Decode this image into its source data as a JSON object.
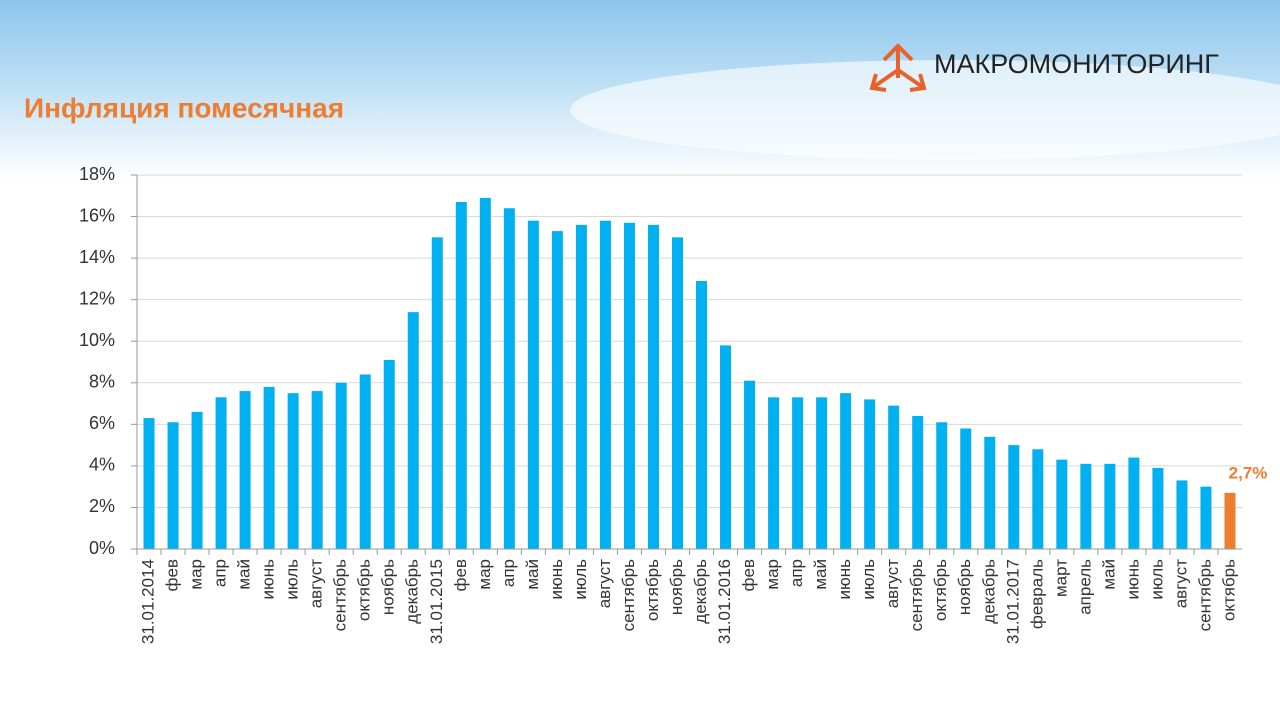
{
  "logo": {
    "text": "МАКРОМОНИТОРИНГ"
  },
  "chart_data": {
    "type": "bar",
    "title": "Инфляция помесячная",
    "categories": [
      "31.01.2014",
      "фев",
      "мар",
      "апр",
      "май",
      "июнь",
      "июль",
      "август",
      "сентябрь",
      "октябрь",
      "ноябрь",
      "декабрь",
      "31.01.2015",
      "фев",
      "мар",
      "апр",
      "май",
      "июнь",
      "июль",
      "август",
      "сентябрь",
      "октябрь",
      "ноябрь",
      "декабрь",
      "31.01.2016",
      "фев",
      "мар",
      "апр",
      "май",
      "июнь",
      "июль",
      "август",
      "сентябрь",
      "октябрь",
      "ноябрь",
      "декабрь",
      "31.01.2017",
      "февраль",
      "март",
      "апрель",
      "май",
      "июнь",
      "июль",
      "август",
      "сентябрь",
      "октябрь"
    ],
    "values": [
      6.3,
      6.1,
      6.6,
      7.3,
      7.6,
      7.8,
      7.5,
      7.6,
      8.0,
      8.4,
      9.1,
      11.4,
      15.0,
      16.7,
      16.9,
      16.4,
      15.8,
      15.3,
      15.6,
      15.8,
      15.7,
      15.6,
      15.0,
      12.9,
      9.8,
      8.1,
      7.3,
      7.3,
      7.3,
      7.5,
      7.2,
      6.9,
      6.4,
      6.1,
      5.8,
      5.4,
      5.0,
      4.8,
      4.3,
      4.1,
      4.1,
      4.4,
      3.9,
      3.3,
      3.0,
      2.7
    ],
    "value_labels": [
      null,
      null,
      null,
      null,
      null,
      null,
      null,
      null,
      null,
      null,
      null,
      null,
      null,
      null,
      null,
      null,
      null,
      null,
      null,
      null,
      null,
      null,
      null,
      null,
      null,
      null,
      null,
      null,
      null,
      null,
      null,
      null,
      null,
      null,
      null,
      null,
      null,
      null,
      null,
      null,
      null,
      null,
      null,
      null,
      null,
      "2,7%"
    ],
    "colors": [
      "#00b0f0",
      "#00b0f0",
      "#00b0f0",
      "#00b0f0",
      "#00b0f0",
      "#00b0f0",
      "#00b0f0",
      "#00b0f0",
      "#00b0f0",
      "#00b0f0",
      "#00b0f0",
      "#00b0f0",
      "#00b0f0",
      "#00b0f0",
      "#00b0f0",
      "#00b0f0",
      "#00b0f0",
      "#00b0f0",
      "#00b0f0",
      "#00b0f0",
      "#00b0f0",
      "#00b0f0",
      "#00b0f0",
      "#00b0f0",
      "#00b0f0",
      "#00b0f0",
      "#00b0f0",
      "#00b0f0",
      "#00b0f0",
      "#00b0f0",
      "#00b0f0",
      "#00b0f0",
      "#00b0f0",
      "#00b0f0",
      "#00b0f0",
      "#00b0f0",
      "#00b0f0",
      "#00b0f0",
      "#00b0f0",
      "#00b0f0",
      "#00b0f0",
      "#00b0f0",
      "#00b0f0",
      "#00b0f0",
      "#00b0f0",
      "#ed7d31"
    ],
    "ylim": [
      0,
      18
    ],
    "yticks": [
      {
        "value": 0,
        "label": "0%"
      },
      {
        "value": 2,
        "label": "2%"
      },
      {
        "value": 4,
        "label": "4%"
      },
      {
        "value": 6,
        "label": "6%"
      },
      {
        "value": 8,
        "label": "8%"
      },
      {
        "value": 10,
        "label": "10%"
      },
      {
        "value": 12,
        "label": "12%"
      },
      {
        "value": 14,
        "label": "14%"
      },
      {
        "value": 16,
        "label": "16%"
      },
      {
        "value": 18,
        "label": "18%"
      }
    ],
    "grid": true
  }
}
